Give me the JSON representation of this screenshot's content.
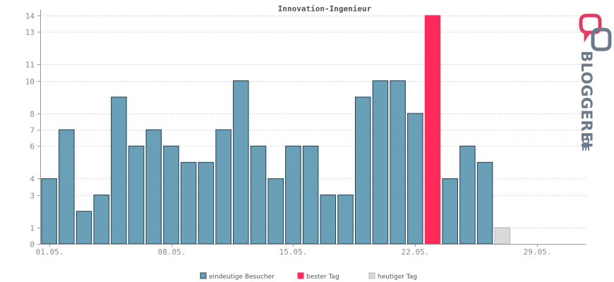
{
  "colors": {
    "bar": "#6a9fb8",
    "best": "#ff2a5a",
    "today": "#d9d9d9",
    "bar_stroke": "#1f3d4f",
    "today_stroke": "#b8b8b8",
    "grid": "#cccccc",
    "axis": "#999999",
    "logo_dark": "#6b7b8c",
    "logo_red": "#e33c63"
  },
  "logo": {
    "brand": "BLOGGEREI",
    "suffix": ".DE",
    "icon": "bloggerei-logo-icon"
  },
  "chart_data": {
    "type": "bar",
    "title": "Innovation-Ingenieur",
    "y_ticks": [
      "0",
      "1",
      "3",
      "4",
      "6",
      "7",
      "8",
      "10",
      "11",
      "13",
      "14"
    ],
    "y_tick_values": [
      0,
      1,
      3,
      4,
      6,
      7,
      8,
      10,
      11,
      13,
      14
    ],
    "ylim": [
      0,
      14
    ],
    "x_tick_labels": [
      {
        "index": 0,
        "label": "01.05."
      },
      {
        "index": 7,
        "label": "08.05."
      },
      {
        "index": 14,
        "label": "15.05."
      },
      {
        "index": 21,
        "label": "22.05."
      },
      {
        "index": 28,
        "label": "29.05."
      }
    ],
    "category_count": 31,
    "series": [
      {
        "name": "eindeutige Besucher",
        "values": [
          {
            "index": 0,
            "value": 4
          },
          {
            "index": 1,
            "value": 7
          },
          {
            "index": 2,
            "value": 2
          },
          {
            "index": 3,
            "value": 3
          },
          {
            "index": 4,
            "value": 9
          },
          {
            "index": 5,
            "value": 6
          },
          {
            "index": 6,
            "value": 7
          },
          {
            "index": 7,
            "value": 6
          },
          {
            "index": 8,
            "value": 5
          },
          {
            "index": 9,
            "value": 5
          },
          {
            "index": 10,
            "value": 7
          },
          {
            "index": 11,
            "value": 10
          },
          {
            "index": 12,
            "value": 6
          },
          {
            "index": 13,
            "value": 4
          },
          {
            "index": 14,
            "value": 6
          },
          {
            "index": 15,
            "value": 6
          },
          {
            "index": 16,
            "value": 3
          },
          {
            "index": 17,
            "value": 3
          },
          {
            "index": 18,
            "value": 9
          },
          {
            "index": 19,
            "value": 10
          },
          {
            "index": 20,
            "value": 10
          },
          {
            "index": 21,
            "value": 8
          },
          {
            "index": 23,
            "value": 4
          },
          {
            "index": 24,
            "value": 6
          },
          {
            "index": 25,
            "value": 5
          }
        ]
      },
      {
        "name": "bester Tag",
        "values": [
          {
            "index": 22,
            "value": 14
          }
        ]
      },
      {
        "name": "heutiger Tag",
        "values": [
          {
            "index": 26,
            "value": 1
          }
        ]
      }
    ],
    "grid": true,
    "legend_position": "bottom-center"
  }
}
